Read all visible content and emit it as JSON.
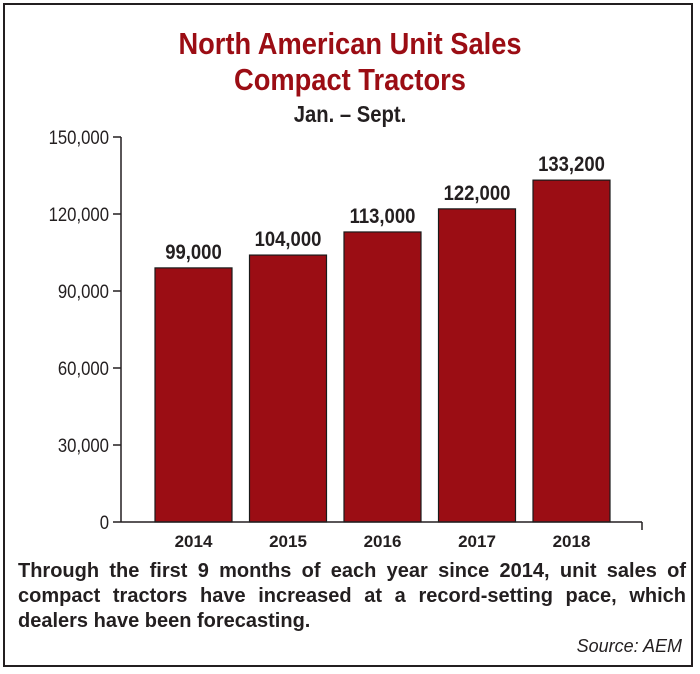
{
  "chart_data": {
    "type": "bar",
    "title": "North American Unit Sales",
    "title_line2": "Compact Tractors",
    "subtitle": "Jan. – Sept.",
    "categories": [
      "2014",
      "2015",
      "2016",
      "2017",
      "2018"
    ],
    "values": [
      99000,
      104000,
      113000,
      122000,
      133200
    ],
    "data_labels": [
      "99,000",
      "104,000",
      "113,000",
      "122,000",
      "133,200"
    ],
    "yticks": [
      0,
      30000,
      60000,
      90000,
      120000,
      150000
    ],
    "ytick_labels": [
      "0",
      "30,000",
      "60,000",
      "90,000",
      "120,000",
      "150,000"
    ],
    "ylim": [
      0,
      150000
    ],
    "xlabel": "",
    "ylabel": "",
    "grid": false,
    "bar_color": "#9b0d14"
  },
  "caption": "Through the first 9 months of each year since 2014, unit sales of compact tractors have increased at a record-setting pace, which dealers have been forecasting.",
  "source": "Source: AEM",
  "colors": {
    "title": "#9b0d14",
    "text": "#231f20",
    "axis": "#231f20"
  }
}
